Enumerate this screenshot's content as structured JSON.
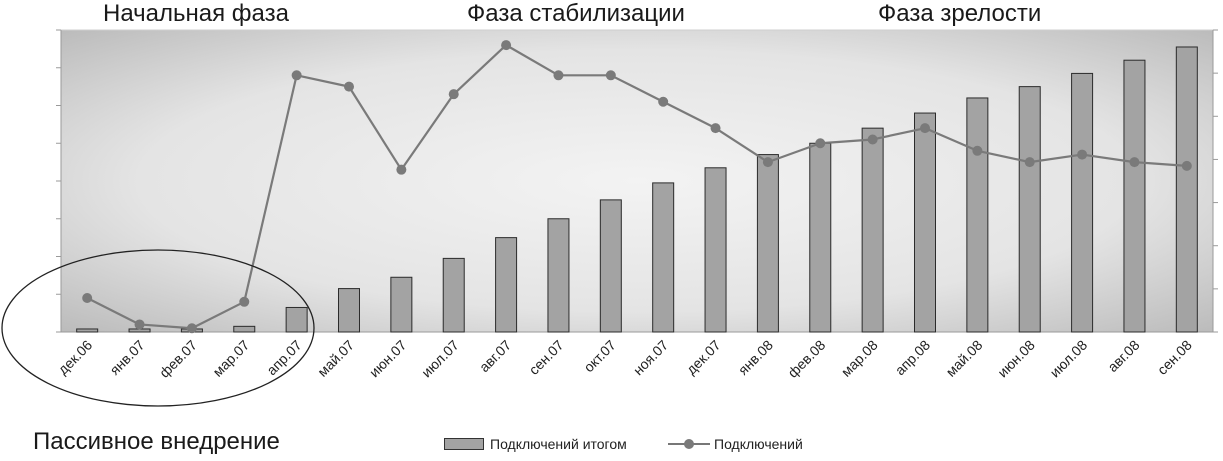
{
  "phases": [
    "Начальная фаза",
    "Фаза стабилизации",
    "Фаза зрелости"
  ],
  "passive_label": "Пассивное внедрение",
  "chart_data": {
    "type": "bar",
    "categories": [
      "дек.06",
      "янв.07",
      "фев.07",
      "мар.07",
      "апр.07",
      "май.07",
      "июн.07",
      "июл.07",
      "авг.07",
      "сен.07",
      "окт.07",
      "ноя.07",
      "дек.07",
      "янв.08",
      "фев.08",
      "мар.08",
      "апр.08",
      "май.08",
      "июн.08",
      "июл.08",
      "авг.08",
      "сен.08"
    ],
    "series": [
      {
        "name": "Подключений итогом",
        "type": "bar",
        "values": [
          0.8,
          0.8,
          0.8,
          1.5,
          6.5,
          11.5,
          14.5,
          19.5,
          25.0,
          30.0,
          35.0,
          39.5,
          43.5,
          47.0,
          50.0,
          54.0,
          58.0,
          62.0,
          65.0,
          68.5,
          72.0,
          75.5
        ]
      },
      {
        "name": "Подключений",
        "type": "line",
        "values": [
          9,
          2,
          1,
          8,
          68,
          65,
          43,
          63,
          76,
          68,
          68,
          61,
          54,
          45,
          50,
          51,
          54,
          48,
          45,
          47,
          45,
          44
        ]
      }
    ],
    "ylim": [
      0,
      80
    ],
    "y_ticks_labeled": false,
    "grid": false,
    "legend_position": "bottom",
    "colors": {
      "bars": "#a3a3a3",
      "bar_edge": "#2b2b2b",
      "line": "#7a7a7a",
      "marker": "#7a7a7a"
    },
    "annotations": {
      "ellipse_around": [
        "дек.06",
        "янв.07",
        "фев.07",
        "мар.07",
        "апр.07"
      ]
    }
  }
}
